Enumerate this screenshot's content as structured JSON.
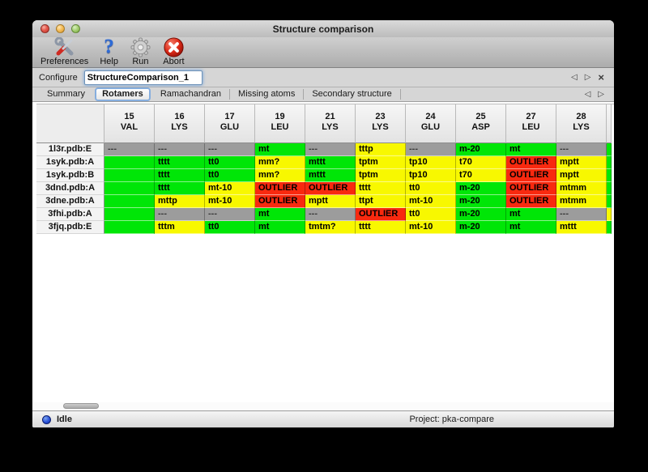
{
  "window": {
    "title": "Structure comparison"
  },
  "toolbar": {
    "items": [
      {
        "name": "preferences",
        "label": "Preferences",
        "icon": "tools-icon"
      },
      {
        "name": "help",
        "label": "Help",
        "icon": "question-icon"
      },
      {
        "name": "run",
        "label": "Run",
        "icon": "gear-icon"
      },
      {
        "name": "abort",
        "label": "Abort",
        "icon": "abort-icon"
      }
    ]
  },
  "configure": {
    "label": "Configure",
    "value": "StructureComparison_1"
  },
  "nav": {
    "back": "◁",
    "forward": "▷",
    "close": "×"
  },
  "tabs": {
    "items": [
      "Summary",
      "Rotamers",
      "Ramachandran",
      "Missing atoms",
      "Secondary structure"
    ],
    "selected_index": 1
  },
  "table": {
    "legend_colors": {
      "green": "#00e607",
      "yellow": "#f8f800",
      "red": "#f8290f",
      "gray": "#9c9c9c"
    },
    "columns": [
      {
        "num": "15",
        "res": "VAL"
      },
      {
        "num": "16",
        "res": "LYS"
      },
      {
        "num": "17",
        "res": "GLU"
      },
      {
        "num": "19",
        "res": "LEU"
      },
      {
        "num": "21",
        "res": "LYS"
      },
      {
        "num": "23",
        "res": "LYS"
      },
      {
        "num": "24",
        "res": "GLU"
      },
      {
        "num": "25",
        "res": "ASP"
      },
      {
        "num": "27",
        "res": "LEU"
      },
      {
        "num": "28",
        "res": "LYS"
      }
    ],
    "rows": [
      {
        "label": "1l3r.pdb:E",
        "partial": "green",
        "cells": [
          {
            "t": "---",
            "c": "gray"
          },
          {
            "t": "---",
            "c": "gray"
          },
          {
            "t": "---",
            "c": "gray"
          },
          {
            "t": "mt",
            "c": "green"
          },
          {
            "t": "---",
            "c": "gray"
          },
          {
            "t": "tttp",
            "c": "yellow"
          },
          {
            "t": "---",
            "c": "gray"
          },
          {
            "t": "m-20",
            "c": "green"
          },
          {
            "t": "mt",
            "c": "green"
          },
          {
            "t": "---",
            "c": "gray"
          }
        ]
      },
      {
        "label": "1syk.pdb:A",
        "partial": "green",
        "cells": [
          {
            "t": "",
            "c": "green"
          },
          {
            "t": "tttt",
            "c": "green"
          },
          {
            "t": "tt0",
            "c": "green"
          },
          {
            "t": "mm?",
            "c": "yellow"
          },
          {
            "t": "mttt",
            "c": "green"
          },
          {
            "t": "tptm",
            "c": "yellow"
          },
          {
            "t": "tp10",
            "c": "yellow"
          },
          {
            "t": "t70",
            "c": "yellow"
          },
          {
            "t": "OUTLIER",
            "c": "red"
          },
          {
            "t": "mptt",
            "c": "yellow"
          }
        ]
      },
      {
        "label": "1syk.pdb:B",
        "partial": "green",
        "cells": [
          {
            "t": "",
            "c": "green"
          },
          {
            "t": "tttt",
            "c": "green"
          },
          {
            "t": "tt0",
            "c": "green"
          },
          {
            "t": "mm?",
            "c": "yellow"
          },
          {
            "t": "mttt",
            "c": "green"
          },
          {
            "t": "tptm",
            "c": "yellow"
          },
          {
            "t": "tp10",
            "c": "yellow"
          },
          {
            "t": "t70",
            "c": "yellow"
          },
          {
            "t": "OUTLIER",
            "c": "red"
          },
          {
            "t": "mptt",
            "c": "yellow"
          }
        ]
      },
      {
        "label": "3dnd.pdb:A",
        "partial": "green",
        "cells": [
          {
            "t": "",
            "c": "green"
          },
          {
            "t": "tttt",
            "c": "green"
          },
          {
            "t": "mt-10",
            "c": "yellow"
          },
          {
            "t": "OUTLIER",
            "c": "red"
          },
          {
            "t": "OUTLIER",
            "c": "red"
          },
          {
            "t": "tttt",
            "c": "yellow"
          },
          {
            "t": "tt0",
            "c": "yellow"
          },
          {
            "t": "m-20",
            "c": "green"
          },
          {
            "t": "OUTLIER",
            "c": "red"
          },
          {
            "t": "mtmm",
            "c": "yellow"
          }
        ]
      },
      {
        "label": "3dne.pdb:A",
        "partial": "green",
        "cells": [
          {
            "t": "",
            "c": "green"
          },
          {
            "t": "mttp",
            "c": "yellow"
          },
          {
            "t": "mt-10",
            "c": "yellow"
          },
          {
            "t": "OUTLIER",
            "c": "red"
          },
          {
            "t": "mptt",
            "c": "yellow"
          },
          {
            "t": "ttpt",
            "c": "yellow"
          },
          {
            "t": "mt-10",
            "c": "yellow"
          },
          {
            "t": "m-20",
            "c": "green"
          },
          {
            "t": "OUTLIER",
            "c": "red"
          },
          {
            "t": "mtmm",
            "c": "yellow"
          }
        ]
      },
      {
        "label": "3fhi.pdb:A",
        "partial": "yellow",
        "cells": [
          {
            "t": "",
            "c": "green"
          },
          {
            "t": "---",
            "c": "gray"
          },
          {
            "t": "---",
            "c": "gray"
          },
          {
            "t": "mt",
            "c": "green"
          },
          {
            "t": "---",
            "c": "gray"
          },
          {
            "t": "OUTLIER",
            "c": "red"
          },
          {
            "t": "tt0",
            "c": "yellow"
          },
          {
            "t": "m-20",
            "c": "green"
          },
          {
            "t": "mt",
            "c": "green"
          },
          {
            "t": "---",
            "c": "gray"
          }
        ]
      },
      {
        "label": "3fjq.pdb:E",
        "partial": "green",
        "cells": [
          {
            "t": "",
            "c": "green"
          },
          {
            "t": "tttm",
            "c": "yellow"
          },
          {
            "t": "tt0",
            "c": "green"
          },
          {
            "t": "mt",
            "c": "green"
          },
          {
            "t": "tmtm?",
            "c": "yellow"
          },
          {
            "t": "tttt",
            "c": "yellow"
          },
          {
            "t": "mt-10",
            "c": "yellow"
          },
          {
            "t": "m-20",
            "c": "green"
          },
          {
            "t": "mt",
            "c": "green"
          },
          {
            "t": "mttt",
            "c": "yellow"
          }
        ]
      }
    ]
  },
  "status": {
    "state": "Idle",
    "project": "Project: pka-compare"
  }
}
